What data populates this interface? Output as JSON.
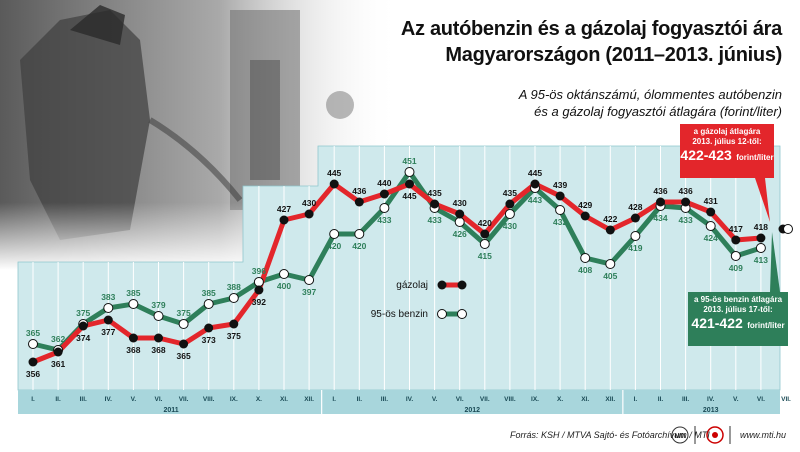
{
  "header": {
    "title_line1": "Az autóbenzin és a gázolaj fogyasztói ára",
    "title_line2": "Magyarországon (2011–2013. június)",
    "subtitle_line1": "A 95-ös oktánszámú, ólommentes autóbenzin",
    "subtitle_line2": "és a gázolaj fogyasztói átlagára (forint/liter)"
  },
  "callouts": {
    "diesel": {
      "line1": "a gázolaj átlagára",
      "line2": "2013. július 12-től:",
      "value": "422-423",
      "unit": "forint/liter",
      "color": "#e3262b"
    },
    "petrol": {
      "line1": "a 95-ös benzin átlagára",
      "line2": "2013. július 17-től:",
      "value": "421-422",
      "unit": "forint/liter",
      "color": "#2e7f5a"
    }
  },
  "footer": {
    "source": "Forrás: KSH / MTVA Sajtó- és Fotóarchívum / MTI",
    "logo_text": "MTI",
    "website": "www.mti.hu"
  },
  "chart_data": {
    "type": "line",
    "categories": [
      "I.",
      "II.",
      "III.",
      "IV.",
      "V.",
      "VI.",
      "VII.",
      "VIII.",
      "IX.",
      "X.",
      "XI.",
      "XII.",
      "I.",
      "II.",
      "III.",
      "IV.",
      "V.",
      "VI.",
      "VII.",
      "VIII.",
      "IX.",
      "X.",
      "XI.",
      "XII.",
      "I.",
      "II.",
      "III.",
      "IV.",
      "V.",
      "VI.",
      "VII."
    ],
    "years": [
      {
        "label": "2011",
        "start": 0,
        "end": 11
      },
      {
        "label": "2012",
        "start": 12,
        "end": 23
      },
      {
        "label": "2013",
        "start": 24,
        "end": 30
      }
    ],
    "series": [
      {
        "name": "gázolaj",
        "color": "#e3262b",
        "values": [
          356,
          361,
          374,
          377,
          368,
          368,
          365,
          373,
          375,
          392,
          427,
          430,
          445,
          436,
          440,
          445,
          435,
          430,
          420,
          435,
          445,
          439,
          429,
          422,
          428,
          436,
          436,
          431,
          417,
          418,
          null
        ]
      },
      {
        "name": "95-ös benzin",
        "color": "#2e7f5a",
        "values": [
          365,
          362,
          375,
          383,
          385,
          379,
          375,
          385,
          388,
          396,
          400,
          397,
          420,
          420,
          433,
          451,
          433,
          426,
          415,
          430,
          443,
          432,
          408,
          405,
          419,
          434,
          433,
          424,
          409,
          413,
          null
        ]
      }
    ],
    "endpoints": {
      "gázolaj": 422.5,
      "95-ös benzin": 421.5
    },
    "ylim": [
      340,
      460
    ],
    "legend_position": "center-right"
  },
  "colors": {
    "bg_band": "#cfe9ec",
    "axis_band": "#a8d6dc",
    "grid": "#ffffff"
  }
}
